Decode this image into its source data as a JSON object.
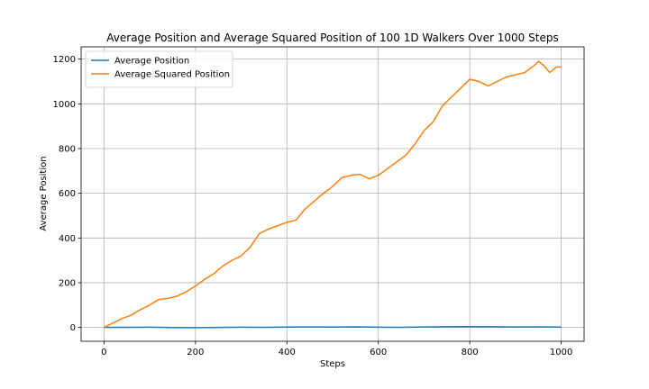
{
  "chart_data": {
    "type": "line",
    "title": "Average Position and Average Squared Position of 100 1D Walkers Over 1000 Steps",
    "xlabel": "Steps",
    "ylabel": "Average Position",
    "xlim": [
      -50,
      1050
    ],
    "ylim": [
      -62,
      1255
    ],
    "xticks": [
      0,
      200,
      400,
      600,
      800,
      1000
    ],
    "yticks": [
      0,
      200,
      400,
      600,
      800,
      1000,
      1200
    ],
    "grid": true,
    "legend_position": "upper-left",
    "series": [
      {
        "name": "Average Position",
        "color": "#1f77b4",
        "x": [
          0,
          50,
          100,
          150,
          200,
          250,
          300,
          350,
          400,
          450,
          500,
          550,
          600,
          650,
          700,
          750,
          800,
          850,
          900,
          950,
          1000
        ],
        "y": [
          0,
          0.5,
          1,
          -0.5,
          -1,
          0,
          1,
          0.5,
          1.5,
          2,
          1.5,
          2.5,
          1,
          0.5,
          2,
          3,
          3.5,
          3,
          2,
          2.5,
          1.5
        ]
      },
      {
        "name": "Average Squared Position",
        "color": "#ff7f0e",
        "x": [
          0,
          20,
          40,
          60,
          80,
          100,
          120,
          140,
          160,
          180,
          200,
          220,
          240,
          260,
          280,
          300,
          320,
          340,
          360,
          380,
          400,
          420,
          440,
          460,
          480,
          500,
          520,
          540,
          560,
          580,
          600,
          620,
          640,
          660,
          680,
          700,
          720,
          740,
          760,
          780,
          800,
          820,
          840,
          860,
          880,
          900,
          920,
          940,
          950,
          960,
          975,
          990,
          1000
        ],
        "y": [
          0,
          20,
          40,
          55,
          80,
          100,
          125,
          130,
          140,
          160,
          185,
          215,
          240,
          275,
          300,
          320,
          360,
          420,
          440,
          455,
          470,
          480,
          530,
          565,
          600,
          630,
          670,
          680,
          685,
          665,
          680,
          710,
          740,
          770,
          820,
          880,
          920,
          990,
          1030,
          1070,
          1110,
          1100,
          1080,
          1100,
          1120,
          1130,
          1140,
          1170,
          1190,
          1175,
          1140,
          1165,
          1165
        ]
      }
    ]
  }
}
